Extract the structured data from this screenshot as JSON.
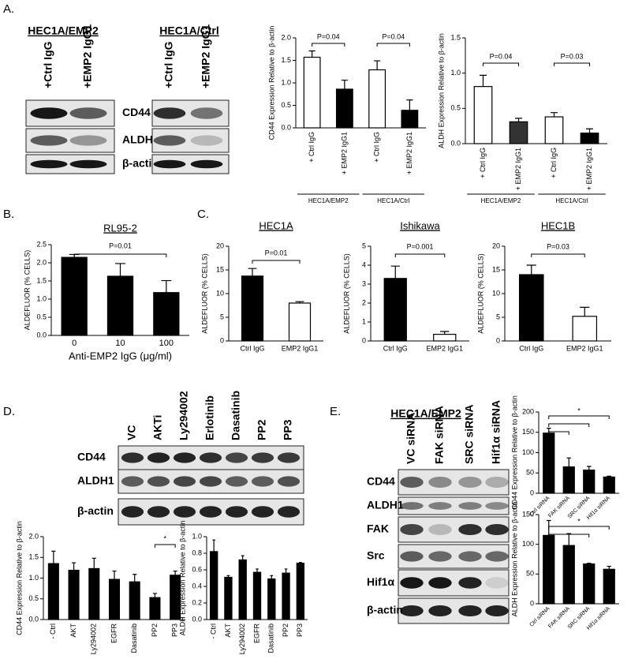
{
  "panels": [
    "A.",
    "B.",
    "C.",
    "D.",
    "E."
  ],
  "blots": [
    {
      "title": "HEC1A/EMP2",
      "lanes": [
        "+Ctrl IgG",
        "+EMP2 IgG1"
      ],
      "rows": [
        "CD44",
        "ALDH1",
        "β-actin"
      ]
    },
    {
      "title": "HEC1A/Ctrl",
      "lanes": [
        "+Ctrl IgG",
        "+EMP2 IgG1"
      ]
    },
    {
      "lanes": [
        "VC",
        "AKTi",
        "Ly294002",
        "Erlotinib",
        "Dasatinib",
        "PP2",
        "PP3"
      ],
      "rows": [
        "CD44",
        "ALDH1",
        "β-actin"
      ]
    },
    {
      "title": "HEC1A/EMP2",
      "lanes": [
        "VC siRNA",
        "FAK siRNA",
        "SRC siRNA",
        "Hif1α siRNA"
      ],
      "rows": [
        "CD44",
        "ALDH1",
        "FAK",
        "Src",
        "Hif1α",
        "β-actin"
      ]
    }
  ],
  "chart_data": [
    {
      "type": "bar",
      "ylabel": "CD44 Expression Relative to β-actin",
      "categories": [
        "+ Ctrl IgG",
        "+ EMP2 IgG1",
        "+ Ctrl IgG",
        "+ EMP2 IgG1"
      ],
      "values": [
        1.57,
        0.86,
        1.29,
        0.39
      ],
      "errors": [
        0.14,
        0.2,
        0.2,
        0.23
      ],
      "colors": [
        "#ffffff",
        "#000000",
        "#ffffff",
        "#000000"
      ],
      "groups": [
        "HEC1A/EMP2",
        "HEC1A/Ctrl"
      ],
      "annotations": [
        "P=0.04",
        "P=0.04"
      ],
      "ylim": [
        0,
        2.0
      ],
      "yticks": [
        {
          "value": 0,
          "label": "0.0"
        },
        0.5,
        {
          "value": 1,
          "label": "1.0"
        },
        1.5,
        {
          "value": 2,
          "label": "2.0"
        }
      ]
    },
    {
      "type": "bar",
      "ylabel": "ALDH Expression Relative to β-actin",
      "categories": [
        "+ Ctrl IgG",
        "+ EMP2 IgG1",
        "+ Ctrl IgG",
        "+ EMP2 IgG1"
      ],
      "values": [
        0.81,
        0.31,
        0.38,
        0.15
      ],
      "errors": [
        0.16,
        0.05,
        0.06,
        0.06
      ],
      "colors": [
        "#ffffff",
        "#333333",
        "#ffffff",
        "#000000"
      ],
      "groups": [
        "HEC1A/EMP2",
        "HEC1A/Ctrl"
      ],
      "annotations": [
        "P=0.04",
        "P=0.03"
      ],
      "ylim": [
        0,
        1.5
      ],
      "yticks": [
        {
          "value": 0,
          "label": "0.0"
        },
        0.5,
        {
          "value": 1,
          "label": "1.0"
        },
        1.5
      ]
    },
    {
      "type": "bar",
      "title": "RL95-2",
      "ylabel": "ALDEFLUOR (% CELLS)",
      "xlabel": "Anti-EMP2 IgG (μg/ml)",
      "categories": [
        "0",
        "10",
        "100"
      ],
      "values": [
        2.15,
        1.63,
        1.18
      ],
      "errors": [
        0.08,
        0.35,
        0.33
      ],
      "colors": [
        "#000000",
        "#000000",
        "#000000"
      ],
      "annotations": [
        "P=0.01"
      ],
      "ylim": [
        0,
        2.5
      ],
      "yticks": [
        {
          "value": 0,
          "label": "0.0"
        },
        0.5,
        {
          "value": 1,
          "label": "1.0"
        },
        1.5,
        {
          "value": 2,
          "label": "2.0"
        },
        2.5
      ]
    },
    {
      "type": "bar",
      "title": "HEC1A",
      "ylabel": "ALDEFLUOR (% CELLS)",
      "categories": [
        "Ctrl IgG",
        "EMP2 IgG1"
      ],
      "values": [
        13.7,
        8.0
      ],
      "errors": [
        1.6,
        0.3
      ],
      "colors": [
        "#000000",
        "#ffffff"
      ],
      "annotations": [
        "P=0.01"
      ],
      "ylim": [
        0,
        20
      ],
      "yticks": [
        0,
        5,
        10,
        15,
        20
      ]
    },
    {
      "type": "bar",
      "title": "Ishikawa",
      "ylabel": "ALDEFLUOR (% CELLS)",
      "categories": [
        "Ctrl IgG",
        "EMP2 IgG1"
      ],
      "values": [
        3.3,
        0.35
      ],
      "errors": [
        0.65,
        0.15
      ],
      "colors": [
        "#000000",
        "#ffffff"
      ],
      "annotations": [
        "P=0.001"
      ],
      "ylim": [
        0,
        5
      ],
      "yticks": [
        0,
        1,
        2,
        3,
        4,
        5
      ]
    },
    {
      "type": "bar",
      "title": "HEC1B",
      "ylabel": "ALDEFLUOR (% CELLS)",
      "categories": [
        "Ctrl IgG",
        "EMP2 IgG1"
      ],
      "values": [
        14,
        5.2
      ],
      "errors": [
        2,
        1.9
      ],
      "colors": [
        "#000000",
        "#ffffff"
      ],
      "annotations": [
        "P=0.03"
      ],
      "ylim": [
        0,
        20
      ],
      "yticks": [
        0,
        5,
        10,
        15,
        20
      ]
    },
    {
      "type": "bar",
      "ylabel": "CD44 Expression Relative to β-actin",
      "categories": [
        "- Ctrl",
        "AKT",
        "Ly294002",
        "EGFR",
        "Dasatinib",
        "PP2",
        "PP3"
      ],
      "values": [
        1.35,
        1.19,
        1.23,
        0.97,
        0.91,
        0.53,
        1.07
      ],
      "errors": [
        0.3,
        0.18,
        0.25,
        0.2,
        0.18,
        0.1,
        0.1
      ],
      "colors": [
        "#000000",
        "#000000",
        "#000000",
        "#000000",
        "#000000",
        "#000000",
        "#000000"
      ],
      "annotations": [
        "*"
      ],
      "ylim": [
        0,
        2.0
      ],
      "yticks": [
        {
          "value": 0,
          "label": "0.0"
        },
        0.5,
        {
          "value": 1,
          "label": "1.0"
        },
        1.5,
        {
          "value": 2,
          "label": "2.0"
        }
      ]
    },
    {
      "type": "bar",
      "ylabel": "ALDH Expression Relative to β-actin",
      "categories": [
        "- Ctrl",
        "AKT",
        "Ly294002",
        "EGFR",
        "Dasatinib",
        "PP2",
        "PP3"
      ],
      "values": [
        0.82,
        0.51,
        0.72,
        0.57,
        0.49,
        0.56,
        0.68
      ],
      "errors": [
        0.14,
        0.02,
        0.05,
        0.04,
        0.04,
        0.05,
        0.01
      ],
      "colors": [
        "#000000",
        "#000000",
        "#000000",
        "#000000",
        "#000000",
        "#000000",
        "#000000"
      ],
      "ylim": [
        0,
        1.0
      ],
      "yticks": [
        {
          "value": 0,
          "label": "0.0"
        },
        0.2,
        0.4,
        0.6,
        0.8,
        {
          "value": 1,
          "label": "1.0"
        }
      ]
    },
    {
      "type": "bar",
      "ylabel": "CD44 Expression Relative to β-actin",
      "categories": [
        "Ctrl siRNA",
        "FAK siRNA",
        "SRC siRNA",
        "Hif1α siRNA"
      ],
      "values": [
        148,
        65,
        57,
        40
      ],
      "errors": [
        12,
        22,
        9,
        2
      ],
      "colors": [
        "#000000",
        "#000000",
        "#000000",
        "#000000"
      ],
      "annotations": [
        "*"
      ],
      "ylim": [
        0,
        200
      ],
      "yticks": [
        0,
        50,
        100,
        150,
        200
      ]
    },
    {
      "type": "bar",
      "ylabel": "ALDH Expression Relative to β-actin",
      "categories": [
        "Ctrl siRNA",
        "FAK siRNA",
        "SRC siRNA",
        "Hif1α siRNA"
      ],
      "values": [
        115,
        98,
        67,
        58
      ],
      "errors": [
        25,
        20,
        1,
        5
      ],
      "colors": [
        "#000000",
        "#000000",
        "#000000",
        "#000000"
      ],
      "annotations": [
        "*"
      ],
      "ylim": [
        0,
        150
      ],
      "yticks": [
        0,
        50,
        100,
        150
      ]
    }
  ]
}
